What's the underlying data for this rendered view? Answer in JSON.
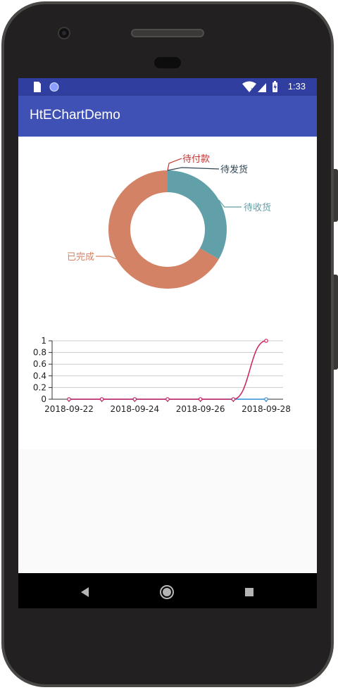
{
  "status_bar": {
    "time": "1:33",
    "background": "#303f9f"
  },
  "app_bar": {
    "title": "HtEChartDemo",
    "background": "#3f51b5"
  },
  "nav_bar": {
    "icons": [
      "back-icon",
      "home-icon",
      "recents-icon"
    ]
  },
  "chart_data": [
    {
      "type": "pie",
      "donut": true,
      "labels": [
        "待付款",
        "待发货",
        "待收货",
        "已完成"
      ],
      "values": [
        0,
        0,
        1,
        2
      ],
      "colors": [
        "#c23531",
        "#2f4554",
        "#61a0a8",
        "#d48265"
      ]
    },
    {
      "type": "line",
      "x": [
        "2018-09-22",
        "2018-09-23",
        "2018-09-24",
        "2018-09-25",
        "2018-09-26",
        "2018-09-27",
        "2018-09-28"
      ],
      "x_tick_labels": [
        "2018-09-22",
        "2018-09-24",
        "2018-09-26",
        "2018-09-28"
      ],
      "y_tick_labels": [
        "0",
        "0.2",
        "0.4",
        "0.6",
        "0.8",
        "1"
      ],
      "ylim": [
        0,
        1
      ],
      "grid": true,
      "series": [
        {
          "values": [
            0,
            0,
            0,
            0,
            0,
            0,
            0
          ],
          "color": "#2f8fd5"
        },
        {
          "values": [
            0,
            0,
            0,
            0,
            0,
            0,
            1
          ],
          "color": "#d0215d"
        }
      ]
    }
  ]
}
